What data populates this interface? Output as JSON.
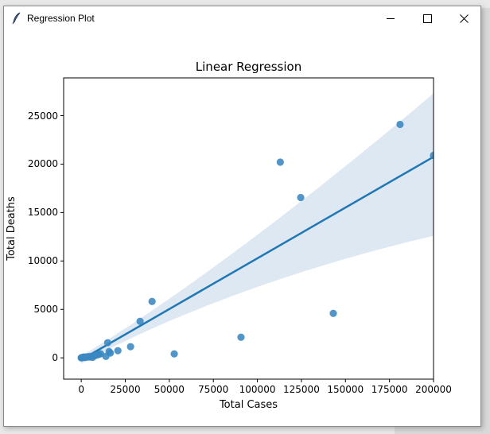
{
  "window": {
    "title": "Regression Plot",
    "app_icon": "feather-icon",
    "controls": {
      "minimize": "minimize-icon",
      "maximize": "maximize-icon",
      "close": "close-icon"
    }
  },
  "colors": {
    "accent": "#1f77b4",
    "point": "#3a87c2",
    "band": "#dde8f3",
    "axes": "#000000"
  },
  "chart_data": {
    "type": "scatter",
    "title": "Linear Regression",
    "xlabel": "Total Cases",
    "ylabel": "Total  Deaths",
    "xlim": [
      -10000,
      200000
    ],
    "ylim": [
      -2200,
      28900
    ],
    "xticks": [
      0,
      25000,
      50000,
      75000,
      100000,
      125000,
      150000,
      175000,
      200000
    ],
    "xtick_labels": [
      "0",
      "25000",
      "50000",
      "75000",
      "100000",
      "125000",
      "150000",
      "175000",
      "200000"
    ],
    "yticks": [
      0,
      5000,
      10000,
      15000,
      20000,
      25000
    ],
    "ytick_labels": [
      "0",
      "5000",
      "10000",
      "15000",
      "20000",
      "25000"
    ],
    "grid": false,
    "legend": null,
    "points": [
      [
        0,
        0
      ],
      [
        200,
        20
      ],
      [
        500,
        30
      ],
      [
        800,
        50
      ],
      [
        1200,
        60
      ],
      [
        1500,
        90
      ],
      [
        2000,
        40
      ],
      [
        2500,
        80
      ],
      [
        3000,
        70
      ],
      [
        3500,
        100
      ],
      [
        4000,
        120
      ],
      [
        5000,
        90
      ],
      [
        5500,
        150
      ],
      [
        6500,
        60
      ],
      [
        7000,
        200
      ],
      [
        8000,
        250
      ],
      [
        9000,
        300
      ],
      [
        10000,
        350
      ],
      [
        11000,
        420
      ],
      [
        14000,
        150
      ],
      [
        15000,
        1560
      ],
      [
        15800,
        650
      ],
      [
        16500,
        500
      ],
      [
        20800,
        740
      ],
      [
        28000,
        1150
      ],
      [
        33400,
        3770
      ],
      [
        40200,
        5820
      ],
      [
        52800,
        410
      ],
      [
        90700,
        2130
      ],
      [
        113000,
        20200
      ],
      [
        124600,
        16550
      ],
      [
        143100,
        4590
      ],
      [
        181000,
        24100
      ],
      [
        200000,
        20900
      ]
    ],
    "regression_line": {
      "x": [
        0,
        200000
      ],
      "y": [
        -200,
        20750
      ]
    },
    "confidence_band": {
      "x": [
        0,
        200000
      ],
      "upper": [
        200,
        27300
      ],
      "lower": [
        -600,
        12600
      ]
    }
  }
}
